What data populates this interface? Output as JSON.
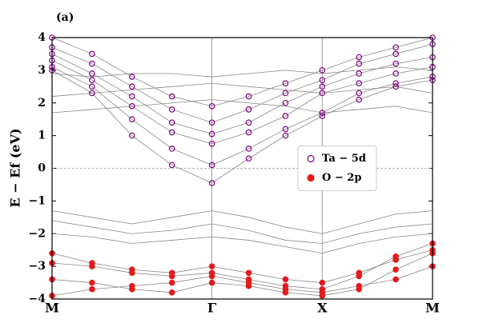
{
  "chart_data": {
    "type": "band-structure",
    "panel_label": "(a)",
    "y_label": "E − Ef (eV)",
    "x": [
      0,
      0.25,
      0.5,
      0.75,
      1.0,
      1.23,
      1.46,
      1.69,
      1.92,
      2.15,
      2.38
    ],
    "xlim": [
      0,
      2.38
    ],
    "xticks": [
      {
        "value": 0,
        "label": "M"
      },
      {
        "value": 1.0,
        "label": "Γ"
      },
      {
        "value": 1.69,
        "label": "X"
      },
      {
        "value": 2.38,
        "label": "M"
      }
    ],
    "ylim": [
      -4,
      4
    ],
    "yticks": [
      {
        "value": -4,
        "label": "−4"
      },
      {
        "value": -3,
        "label": "−3"
      },
      {
        "value": -2,
        "label": "−2"
      },
      {
        "value": -1,
        "label": "−1"
      },
      0,
      1,
      2,
      3,
      4
    ],
    "zero_line": true,
    "legend": "center right",
    "background_bands": {
      "color": "#888888",
      "bands": [
        [
          -1.3,
          -1.5,
          -1.7,
          -1.5,
          -1.3,
          -1.5,
          -1.8,
          -2.0,
          -1.7,
          -1.4,
          -1.3
        ],
        [
          -1.6,
          -1.8,
          -2.0,
          -1.9,
          -1.7,
          -1.9,
          -2.2,
          -2.3,
          -2.0,
          -1.8,
          -1.7
        ],
        [
          -2.0,
          -2.1,
          -2.3,
          -2.2,
          -2.1,
          -2.2,
          -2.4,
          -2.6,
          -2.3,
          -2.1,
          -2.0
        ],
        [
          1.7,
          1.8,
          1.9,
          2.0,
          2.1,
          2.0,
          1.9,
          1.7,
          1.8,
          1.9,
          1.7
        ],
        [
          2.2,
          2.3,
          2.4,
          2.5,
          2.6,
          2.5,
          2.4,
          2.3,
          2.4,
          2.5,
          2.3
        ],
        [
          2.9,
          2.8,
          2.9,
          2.9,
          2.8,
          2.9,
          3.0,
          2.9,
          3.0,
          3.1,
          3.0
        ]
      ]
    },
    "series": [
      {
        "name": "Ta − 5d",
        "color": "#800080",
        "marker": "open",
        "bands": [
          [
            3.0,
            2.3,
            1.0,
            0.1,
            -0.45,
            0.3,
            1.0,
            1.6,
            2.1,
            2.5,
            2.7
          ],
          [
            3.1,
            2.5,
            1.5,
            0.6,
            0.1,
            0.6,
            1.2,
            1.7,
            2.3,
            2.6,
            2.8
          ],
          [
            3.3,
            2.7,
            1.9,
            1.1,
            0.75,
            1.1,
            1.6,
            2.3,
            2.6,
            2.9,
            3.1
          ],
          [
            3.5,
            2.9,
            2.2,
            1.4,
            1.05,
            1.4,
            2.0,
            2.5,
            2.9,
            3.2,
            3.4
          ],
          [
            3.7,
            3.2,
            2.5,
            1.8,
            1.4,
            1.8,
            2.3,
            2.7,
            3.2,
            3.5,
            3.8
          ],
          [
            4.0,
            3.5,
            2.8,
            2.2,
            1.9,
            2.2,
            2.6,
            3.0,
            3.4,
            3.7,
            4.0
          ]
        ]
      },
      {
        "name": "O − 2p",
        "color": "#e41a1c",
        "marker": "filled",
        "bands": [
          [
            -2.9,
            -3.0,
            -3.2,
            -3.3,
            -3.2,
            -3.4,
            -3.6,
            -3.7,
            -3.3,
            -2.7,
            -2.3
          ],
          [
            -3.4,
            -3.5,
            -3.7,
            -3.8,
            -3.5,
            -3.6,
            -3.8,
            -3.9,
            -3.7,
            -3.1,
            -2.6
          ],
          [
            -3.9,
            -3.7,
            -3.6,
            -3.5,
            -3.3,
            -3.5,
            -3.7,
            -3.8,
            -3.6,
            -3.4,
            -3.0
          ],
          [
            -2.6,
            -2.9,
            -3.1,
            -3.2,
            -3.0,
            -3.2,
            -3.4,
            -3.5,
            -3.2,
            -2.8,
            -2.5
          ]
        ]
      }
    ]
  }
}
